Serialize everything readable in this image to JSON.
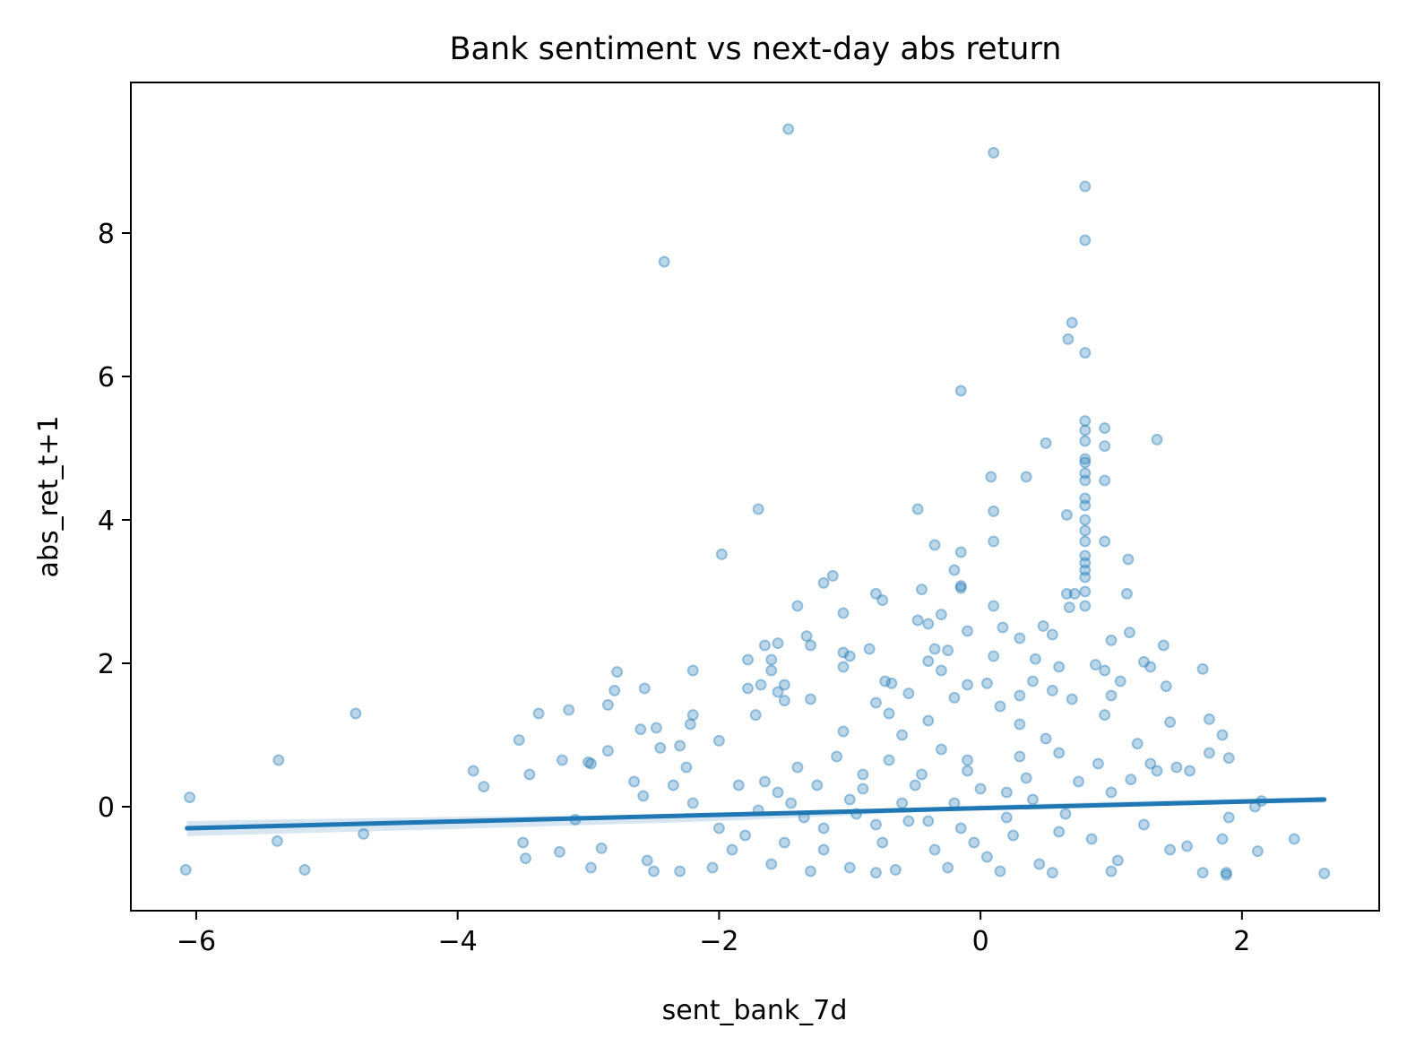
{
  "chart_data": {
    "type": "scatter",
    "title": "Bank sentiment vs next-day abs return",
    "xlabel": "sent_bank_7d",
    "ylabel": "abs_ret_t+1",
    "xlim": [
      -6.5,
      3.05
    ],
    "ylim": [
      -1.45,
      10.1
    ],
    "xticks": [
      {
        "value": -6,
        "label": "−6"
      },
      {
        "value": -4,
        "label": "−4"
      },
      {
        "value": -2,
        "label": "−2"
      },
      {
        "value": 0,
        "label": "0"
      },
      {
        "value": 2,
        "label": "2"
      }
    ],
    "yticks": [
      {
        "value": 0,
        "label": "0"
      },
      {
        "value": 2,
        "label": "2"
      },
      {
        "value": 4,
        "label": "4"
      },
      {
        "value": 6,
        "label": "6"
      },
      {
        "value": 8,
        "label": "8"
      }
    ],
    "grid": false,
    "legend": "none",
    "colors": {
      "points": "#1f77b4",
      "line": "#1f77b4",
      "ci_band": "#1f77b4"
    },
    "regression_line": {
      "x": [
        -6.07,
        2.63
      ],
      "y": [
        -0.3,
        0.1
      ]
    },
    "ci_band": {
      "x": [
        -6.07,
        -4.0,
        -2.0,
        0.0,
        0.8,
        2.63
      ],
      "upper": [
        -0.2,
        -0.14,
        -0.11,
        0.02,
        0.06,
        0.14
      ],
      "lower": [
        -0.41,
        -0.31,
        -0.2,
        -0.04,
        0.02,
        0.05
      ]
    },
    "series": [
      {
        "values": [
          [
            -1.47,
            9.45
          ],
          [
            0.1,
            9.12
          ],
          [
            0.8,
            8.65
          ],
          [
            0.8,
            7.9
          ],
          [
            -2.42,
            7.6
          ],
          [
            0.7,
            6.75
          ],
          [
            0.67,
            6.52
          ],
          [
            0.8,
            6.33
          ],
          [
            -0.15,
            5.8
          ],
          [
            0.8,
            5.38
          ],
          [
            0.95,
            5.28
          ],
          [
            0.8,
            5.25
          ],
          [
            0.8,
            5.1
          ],
          [
            1.35,
            5.12
          ],
          [
            0.5,
            5.07
          ],
          [
            0.95,
            5.03
          ],
          [
            0.8,
            4.85
          ],
          [
            0.8,
            4.8
          ],
          [
            0.08,
            4.6
          ],
          [
            0.35,
            4.6
          ],
          [
            0.8,
            4.65
          ],
          [
            0.8,
            4.55
          ],
          [
            0.95,
            4.55
          ],
          [
            0.8,
            4.3
          ],
          [
            0.8,
            4.2
          ],
          [
            -1.7,
            4.15
          ],
          [
            -0.48,
            4.15
          ],
          [
            0.1,
            4.12
          ],
          [
            0.66,
            4.07
          ],
          [
            0.8,
            4.0
          ],
          [
            0.8,
            3.85
          ],
          [
            0.95,
            3.7
          ],
          [
            0.1,
            3.7
          ],
          [
            -0.35,
            3.65
          ],
          [
            0.8,
            3.7
          ],
          [
            -1.98,
            3.52
          ],
          [
            -0.15,
            3.55
          ],
          [
            0.8,
            3.5
          ],
          [
            0.8,
            3.4
          ],
          [
            0.8,
            3.3
          ],
          [
            1.13,
            3.45
          ],
          [
            0.8,
            3.2
          ],
          [
            -0.2,
            3.3
          ],
          [
            -1.13,
            3.22
          ],
          [
            -1.2,
            3.12
          ],
          [
            -0.15,
            3.05
          ],
          [
            -0.45,
            3.03
          ],
          [
            0.8,
            3.0
          ],
          [
            0.66,
            2.97
          ],
          [
            0.72,
            2.97
          ],
          [
            1.12,
            2.97
          ],
          [
            -0.15,
            3.08
          ],
          [
            -0.8,
            2.97
          ],
          [
            -0.75,
            2.88
          ],
          [
            0.1,
            2.8
          ],
          [
            0.8,
            2.8
          ],
          [
            0.68,
            2.78
          ],
          [
            -1.4,
            2.8
          ],
          [
            -1.05,
            2.7
          ],
          [
            -0.3,
            2.68
          ],
          [
            -0.4,
            2.55
          ],
          [
            -0.48,
            2.6
          ],
          [
            -0.1,
            2.45
          ],
          [
            0.17,
            2.5
          ],
          [
            0.48,
            2.52
          ],
          [
            -1.33,
            2.38
          ],
          [
            1.14,
            2.43
          ],
          [
            0.3,
            2.35
          ],
          [
            0.55,
            2.4
          ],
          [
            -1.3,
            2.25
          ],
          [
            -1.55,
            2.28
          ],
          [
            -1.65,
            2.25
          ],
          [
            -0.35,
            2.2
          ],
          [
            -0.25,
            2.18
          ],
          [
            0.1,
            2.1
          ],
          [
            1.0,
            2.32
          ],
          [
            1.4,
            2.25
          ],
          [
            -1.05,
            2.15
          ],
          [
            -0.85,
            2.2
          ],
          [
            -1.0,
            2.1
          ],
          [
            -0.4,
            2.03
          ],
          [
            -1.78,
            2.05
          ],
          [
            -1.6,
            2.05
          ],
          [
            0.42,
            2.06
          ],
          [
            0.6,
            1.95
          ],
          [
            1.25,
            2.02
          ],
          [
            1.3,
            1.95
          ],
          [
            -2.78,
            1.88
          ],
          [
            -2.2,
            1.9
          ],
          [
            -1.05,
            1.95
          ],
          [
            -1.6,
            1.9
          ],
          [
            -0.3,
            1.9
          ],
          [
            0.88,
            1.98
          ],
          [
            0.95,
            1.9
          ],
          [
            1.7,
            1.92
          ],
          [
            -0.73,
            1.75
          ],
          [
            -0.68,
            1.72
          ],
          [
            -1.68,
            1.7
          ],
          [
            -1.5,
            1.7
          ],
          [
            -1.55,
            1.6
          ],
          [
            -2.8,
            1.62
          ],
          [
            -2.57,
            1.65
          ],
          [
            -0.1,
            1.7
          ],
          [
            0.05,
            1.72
          ],
          [
            0.4,
            1.75
          ],
          [
            0.55,
            1.62
          ],
          [
            1.07,
            1.75
          ],
          [
            1.42,
            1.68
          ],
          [
            -1.78,
            1.65
          ],
          [
            -1.3,
            1.5
          ],
          [
            -0.55,
            1.58
          ],
          [
            -0.2,
            1.52
          ],
          [
            0.3,
            1.55
          ],
          [
            0.7,
            1.5
          ],
          [
            1.0,
            1.55
          ],
          [
            -2.85,
            1.42
          ],
          [
            -1.5,
            1.48
          ],
          [
            -0.8,
            1.45
          ],
          [
            0.15,
            1.4
          ],
          [
            -4.78,
            1.3
          ],
          [
            -3.38,
            1.3
          ],
          [
            -3.15,
            1.35
          ],
          [
            -1.72,
            1.28
          ],
          [
            -0.7,
            1.3
          ],
          [
            -2.2,
            1.28
          ],
          [
            0.95,
            1.28
          ],
          [
            1.75,
            1.22
          ],
          [
            -2.22,
            1.15
          ],
          [
            -2.48,
            1.1
          ],
          [
            -2.6,
            1.08
          ],
          [
            -0.4,
            1.2
          ],
          [
            0.3,
            1.15
          ],
          [
            1.45,
            1.18
          ],
          [
            -3.53,
            0.93
          ],
          [
            -2.0,
            0.92
          ],
          [
            -1.05,
            1.05
          ],
          [
            -0.6,
            1.0
          ],
          [
            1.85,
            1.0
          ],
          [
            -5.37,
            0.65
          ],
          [
            -3.8,
            0.28
          ],
          [
            -3.88,
            0.5
          ],
          [
            -3.45,
            0.45
          ],
          [
            -3.2,
            0.65
          ],
          [
            -2.98,
            0.6
          ],
          [
            -2.85,
            0.78
          ],
          [
            -2.65,
            0.35
          ],
          [
            -6.05,
            0.13
          ],
          [
            -2.58,
            0.15
          ],
          [
            -3.0,
            0.62
          ],
          [
            -2.35,
            0.3
          ],
          [
            -2.25,
            0.55
          ],
          [
            -2.45,
            0.82
          ],
          [
            -2.3,
            0.85
          ],
          [
            -2.2,
            0.05
          ],
          [
            -3.1,
            -0.18
          ],
          [
            -3.22,
            -0.63
          ],
          [
            -3.5,
            -0.5
          ],
          [
            -3.48,
            -0.72
          ],
          [
            -2.9,
            -0.58
          ],
          [
            -2.98,
            -0.85
          ],
          [
            -2.55,
            -0.75
          ],
          [
            -2.5,
            -0.9
          ],
          [
            -2.05,
            -0.85
          ],
          [
            -2.3,
            -0.9
          ],
          [
            -5.38,
            -0.48
          ],
          [
            -6.08,
            -0.88
          ],
          [
            -5.17,
            -0.88
          ],
          [
            -4.72,
            -0.38
          ],
          [
            -1.9,
            -0.6
          ],
          [
            -1.6,
            -0.8
          ],
          [
            -1.3,
            -0.9
          ],
          [
            -1.0,
            -0.85
          ],
          [
            -0.8,
            -0.92
          ],
          [
            1.7,
            -0.92
          ],
          [
            2.63,
            -0.93
          ],
          [
            2.4,
            -0.45
          ],
          [
            2.12,
            -0.62
          ],
          [
            1.88,
            -0.95
          ],
          [
            1.88,
            -0.92
          ],
          [
            1.58,
            -0.55
          ],
          [
            1.9,
            -0.15
          ],
          [
            1.85,
            -0.45
          ],
          [
            2.1,
            0.0
          ],
          [
            2.15,
            0.08
          ],
          [
            1.9,
            0.68
          ],
          [
            1.75,
            0.75
          ],
          [
            1.5,
            0.55
          ],
          [
            1.6,
            0.5
          ],
          [
            1.35,
            0.5
          ],
          [
            1.2,
            0.88
          ],
          [
            1.3,
            0.6
          ],
          [
            1.15,
            0.38
          ],
          [
            1.0,
            0.2
          ],
          [
            0.9,
            0.6
          ],
          [
            0.6,
            0.75
          ],
          [
            0.5,
            0.95
          ],
          [
            0.35,
            0.4
          ],
          [
            0.2,
            0.2
          ],
          [
            -0.1,
            0.5
          ],
          [
            -0.3,
            0.8
          ],
          [
            -0.5,
            0.3
          ],
          [
            -0.7,
            0.65
          ],
          [
            -0.9,
            0.45
          ],
          [
            -1.1,
            0.7
          ],
          [
            -1.25,
            0.3
          ],
          [
            -1.4,
            0.55
          ],
          [
            -1.55,
            0.2
          ],
          [
            -1.7,
            -0.05
          ],
          [
            -1.85,
            0.3
          ],
          [
            -2.0,
            -0.3
          ],
          [
            -1.5,
            -0.5
          ],
          [
            -1.2,
            -0.3
          ],
          [
            -0.95,
            -0.1
          ],
          [
            -0.75,
            -0.5
          ],
          [
            -0.55,
            -0.2
          ],
          [
            -0.35,
            -0.6
          ],
          [
            -0.15,
            -0.3
          ],
          [
            0.05,
            -0.7
          ],
          [
            0.25,
            -0.4
          ],
          [
            0.45,
            -0.8
          ],
          [
            0.65,
            -0.1
          ],
          [
            0.85,
            -0.45
          ],
          [
            1.05,
            -0.75
          ],
          [
            1.25,
            -0.25
          ],
          [
            1.45,
            -0.6
          ],
          [
            -0.2,
            0.05
          ],
          [
            0.0,
            0.25
          ],
          [
            0.2,
            -0.15
          ],
          [
            0.4,
            0.1
          ],
          [
            0.6,
            -0.35
          ],
          [
            -0.4,
            -0.2
          ],
          [
            -0.6,
            0.05
          ],
          [
            -0.8,
            -0.25
          ],
          [
            -1.0,
            0.1
          ],
          [
            -1.2,
            -0.6
          ],
          [
            -0.25,
            -0.85
          ],
          [
            0.15,
            -0.9
          ],
          [
            0.55,
            -0.92
          ],
          [
            -0.65,
            -0.88
          ],
          [
            1.0,
            -0.9
          ],
          [
            -0.1,
            0.65
          ],
          [
            0.3,
            0.7
          ],
          [
            -0.45,
            0.45
          ],
          [
            0.75,
            0.35
          ],
          [
            -1.35,
            -0.15
          ],
          [
            -1.65,
            0.35
          ],
          [
            -1.8,
            -0.4
          ],
          [
            -1.45,
            0.05
          ],
          [
            -0.9,
            0.25
          ],
          [
            -0.05,
            -0.5
          ]
        ]
      }
    ]
  }
}
